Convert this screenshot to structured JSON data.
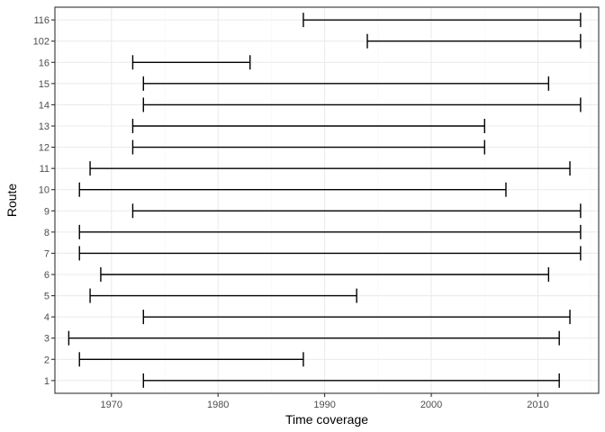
{
  "chart_data": {
    "type": "errorbar-range",
    "xlabel": "Time coverage",
    "ylabel": "Route",
    "xlim": [
      1964.7,
      2015.7
    ],
    "xticks": [
      1970,
      1980,
      1990,
      2000,
      2010
    ],
    "grid": true,
    "legend": "none",
    "series": [
      {
        "categories": [
          "1",
          "2",
          "3",
          "4",
          "5",
          "6",
          "7",
          "8",
          "9",
          "10",
          "11",
          "12",
          "13",
          "14",
          "15",
          "16",
          "102",
          "116"
        ],
        "start": [
          1973,
          1967,
          1966,
          1973,
          1968,
          1969,
          1967,
          1967,
          1972,
          1967,
          1968,
          1972,
          1972,
          1973,
          1973,
          1972,
          1994,
          1988
        ],
        "end": [
          2012,
          1988,
          2012,
          2013,
          1993,
          2011,
          2014,
          2014,
          2014,
          2007,
          2013,
          2005,
          2005,
          2014,
          2011,
          1983,
          2014,
          2014
        ]
      }
    ],
    "colors": {
      "panel_border": "#333333",
      "grid_major": "#ebebeb",
      "grid_minor": "#f5f5f5",
      "bar": "#000000",
      "tick": "#333333"
    }
  }
}
